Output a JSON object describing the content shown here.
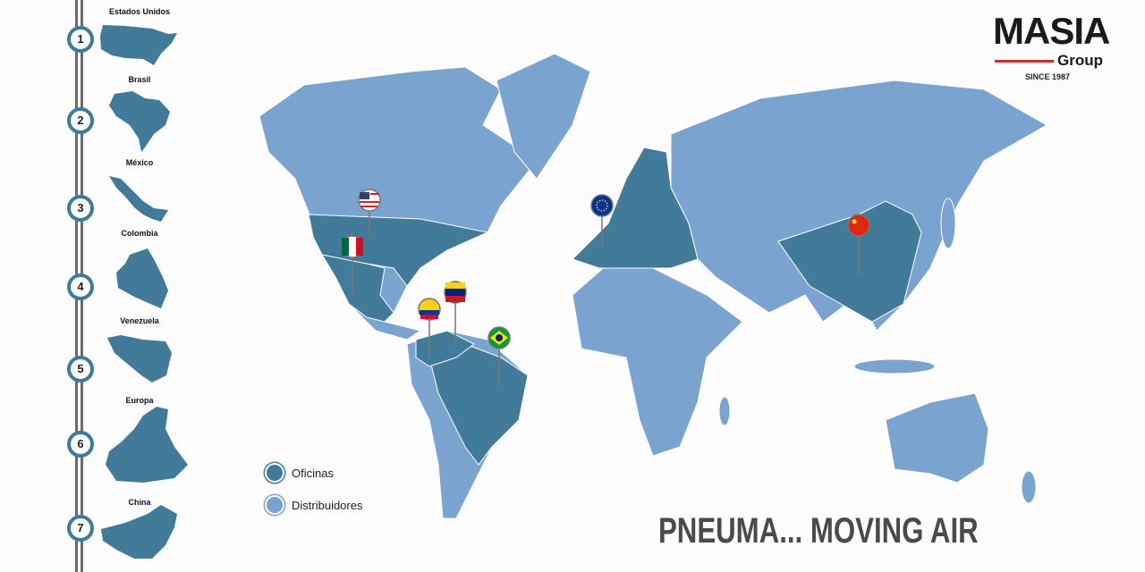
{
  "brand": {
    "name": "MASIA",
    "sub": "Group",
    "since": "SINCE 1987"
  },
  "colors": {
    "offices": "#427a99",
    "distributors": "#7aa3cf",
    "accent": "#d32b2b"
  },
  "countries": [
    {
      "num": "1",
      "name": "Estados Unidos"
    },
    {
      "num": "2",
      "name": "Brasil"
    },
    {
      "num": "3",
      "name": "México"
    },
    {
      "num": "4",
      "name": "Colombia"
    },
    {
      "num": "5",
      "name": "Venezuela"
    },
    {
      "num": "6",
      "name": "Europa"
    },
    {
      "num": "7",
      "name": "China"
    }
  ],
  "legend": {
    "offices": "Oficinas",
    "distributors": "Distribuidores"
  },
  "pins": [
    "usa-flag",
    "mexico-flag",
    "colombia-flag",
    "venezuela-flag",
    "brazil-flag",
    "eu-flag",
    "china-flag"
  ],
  "tagline": "PNEUMA... MOVING AIR"
}
